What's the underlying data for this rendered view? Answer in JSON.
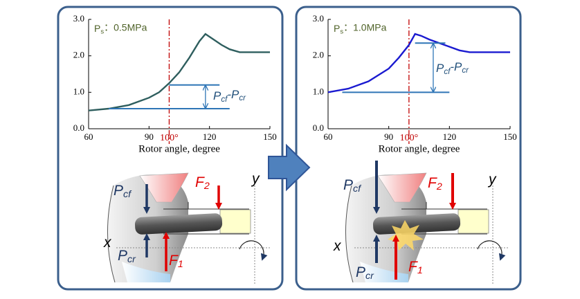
{
  "chart_data": [
    {
      "type": "line",
      "legend_label": {
        "base": "P",
        "sub": "s",
        "rest": "：0.5MPa"
      },
      "x_label": "Rotor angle, degree",
      "x": [
        60,
        70,
        80,
        90,
        95,
        100,
        105,
        110,
        115,
        118,
        122,
        126,
        130,
        135,
        140,
        150
      ],
      "series": [
        {
          "color": "#2e5e5e",
          "values": [
            0.5,
            0.55,
            0.65,
            0.85,
            1.0,
            1.25,
            1.55,
            1.95,
            2.4,
            2.6,
            2.45,
            2.3,
            2.18,
            2.1,
            2.1,
            2.1
          ]
        }
      ],
      "xlim": [
        60,
        150
      ],
      "xticks": [
        60,
        90,
        120,
        150
      ],
      "ylim": [
        0,
        3
      ],
      "yticks": [
        {
          "value": 0,
          "label": "0.0"
        },
        {
          "value": 1,
          "label": "1.0"
        },
        {
          "value": 2,
          "label": "2.0"
        },
        {
          "value": 3,
          "label": "3.0"
        }
      ],
      "marker": {
        "value": 100,
        "label": "100°"
      },
      "levels": [
        1.2,
        0.55
      ],
      "level_label": [
        {
          "base": "P",
          "sub": "cf"
        },
        {
          "base": "-P",
          "sub": "cr"
        }
      ]
    },
    {
      "type": "line",
      "legend_label": {
        "base": "P",
        "sub": "s",
        "rest": "：1.0MPa"
      },
      "x_label": "Rotor angle, degree",
      "x": [
        60,
        70,
        80,
        90,
        95,
        100,
        103,
        106,
        110,
        115,
        120,
        125,
        130,
        140,
        150
      ],
      "series": [
        {
          "color": "#1a1ad0",
          "values": [
            1.0,
            1.1,
            1.3,
            1.65,
            1.95,
            2.3,
            2.6,
            2.55,
            2.45,
            2.35,
            2.25,
            2.15,
            2.1,
            2.1,
            2.1
          ]
        }
      ],
      "xlim": [
        60,
        150
      ],
      "xticks": [
        60,
        90,
        120,
        150
      ],
      "ylim": [
        0,
        3
      ],
      "yticks": [
        {
          "value": 0,
          "label": "0.0"
        },
        {
          "value": 1,
          "label": "1.0"
        },
        {
          "value": 2,
          "label": "2.0"
        },
        {
          "value": 3,
          "label": "3.0"
        }
      ],
      "marker": {
        "value": 100,
        "label": "100°"
      },
      "levels": [
        2.35,
        1.0
      ],
      "level_label": [
        {
          "base": "P",
          "sub": "cf"
        },
        {
          "base": "-P",
          "sub": "cr"
        }
      ]
    }
  ],
  "diagrams": [
    {
      "labels": [
        {
          "base": "P",
          "sub": "cf"
        },
        {
          "base": "F",
          "sub": "2"
        },
        {
          "base": "y"
        },
        {
          "base": "x"
        },
        {
          "base": "P",
          "sub": "cr"
        },
        {
          "base": "F",
          "sub": "1"
        }
      ]
    },
    {
      "labels": [
        {
          "base": "P",
          "sub": "cf"
        },
        {
          "base": "F",
          "sub": "2"
        },
        {
          "base": "y"
        },
        {
          "base": "x"
        },
        {
          "base": "P",
          "sub": "cr"
        },
        {
          "base": "F",
          "sub": "1"
        }
      ]
    }
  ]
}
